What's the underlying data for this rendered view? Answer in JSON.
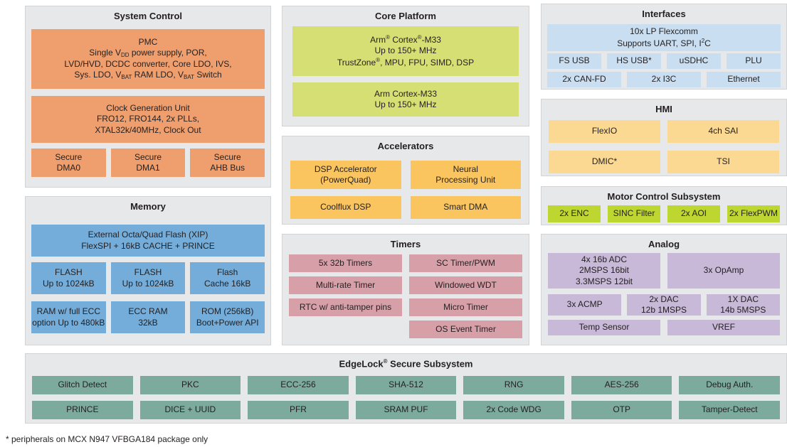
{
  "footnote": "* peripherals on MCX N947 VFBGA184 package only",
  "colors": {
    "panel": "#e7e8e9",
    "system": "#ef9f6e",
    "core": "#d5df73",
    "interfaces": "#c9def1",
    "memory": "#74add9",
    "hmi": "#fcd992",
    "accelerators": "#fac55e",
    "motor": "#bed630",
    "timers": "#d7a0a8",
    "analog": "#c7b9d7",
    "secure": "#7cab9d"
  },
  "panels": {
    "system_control": {
      "title": "System Control",
      "pmc": [
        "PMC",
        "Single V<sub>DD</sub> power supply, POR,",
        "LVD/HVD, DCDC converter, Core LDO, IVS,",
        "Sys. LDO, V<sub>BAT</sub> RAM LDO, V<sub>BAT</sub> Switch"
      ],
      "clock_gen": [
        "Clock Generation Unit",
        "FRO12, FRO144, 2x PLLs,",
        "XTAL32k/40MHz, Clock Out"
      ],
      "secure_dma0": [
        "Secure",
        "DMA0"
      ],
      "secure_dma1": [
        "Secure",
        "DMA1"
      ],
      "secure_ahb": [
        "Secure",
        "AHB Bus"
      ]
    },
    "core_platform": {
      "title": "Core Platform",
      "cpu1": [
        "Arm<sup>®</sup> Cortex<sup>®</sup>-M33",
        "Up to 150+ MHz",
        "TrustZone<sup>®</sup>, MPU, FPU, SIMD, DSP"
      ],
      "cpu2": [
        "Arm Cortex-M33",
        "Up to 150+ MHz"
      ]
    },
    "interfaces": {
      "title": "Interfaces",
      "flexcomm": [
        "10x LP Flexcomm",
        "Supports UART, SPI, I<sup>2</sup>C"
      ],
      "row1": [
        "FS USB",
        "HS USB*",
        "uSDHC",
        "PLU"
      ],
      "row2": [
        "2x CAN-FD",
        "2x I3C",
        "Ethernet"
      ]
    },
    "memory": {
      "title": "Memory",
      "flexspi": [
        "External Octa/Quad Flash (XIP)",
        "FlexSPI + 16kB CACHE + PRINCE"
      ],
      "flash1": [
        "FLASH",
        "Up to 1024kB"
      ],
      "flash2": [
        "FLASH",
        "Up to 1024kB"
      ],
      "flash_cache": [
        "Flash",
        "Cache 16kB"
      ],
      "ram": [
        "RAM w/ full ECC",
        "option Up to 480kB"
      ],
      "ecc_ram": [
        "ECC RAM",
        "32kB"
      ],
      "rom": [
        "ROM (256kB)",
        "Boot+Power API"
      ]
    },
    "accelerators": {
      "title": "Accelerators",
      "powerquad": [
        "DSP Accelerator",
        "(PowerQuad)"
      ],
      "npu": [
        "Neural",
        "Processing Unit"
      ],
      "coolflux": [
        "Coolflux DSP"
      ],
      "smart_dma": [
        "Smart DMA"
      ]
    },
    "timers": {
      "title": "Timers",
      "left": [
        "5x 32b Timers",
        "Multi-rate Timer",
        "RTC w/ anti-tamper pins"
      ],
      "right": [
        "SC Timer/PWM",
        "Windowed WDT",
        "Micro Timer",
        "OS Event Timer"
      ]
    },
    "hmi": {
      "title": "HMI",
      "row1": [
        "FlexIO",
        "4ch SAI"
      ],
      "row2": [
        "DMIC*",
        "TSI"
      ]
    },
    "motor": {
      "title": "Motor Control Subsystem",
      "cells": [
        "2x ENC",
        "SINC Filter",
        "2x AOI",
        "2x FlexPWM"
      ]
    },
    "analog": {
      "title": "Analog",
      "adc": [
        "4x 16b ADC",
        "2MSPS 16bit",
        "3.3MSPS 12bit"
      ],
      "opamp": [
        "3x OpAmp"
      ],
      "acmp": [
        "3x ACMP"
      ],
      "dac2": [
        "2x DAC",
        "12b 1MSPS"
      ],
      "dac1": [
        "1X DAC",
        "14b 5MSPS"
      ],
      "row3": [
        "Temp Sensor",
        "VREF"
      ]
    },
    "edgelock": {
      "title": "EdgeLock<sup>®</sup> Secure Subsystem",
      "row1": [
        "Glitch Detect",
        "PKC",
        "ECC-256",
        "SHA-512",
        "RNG",
        "AES-256",
        "Debug Auth."
      ],
      "row2": [
        "PRINCE",
        "DICE + UUID",
        "PFR",
        "SRAM PUF",
        "2x Code WDG",
        "OTP",
        "Tamper-Detect"
      ]
    }
  }
}
